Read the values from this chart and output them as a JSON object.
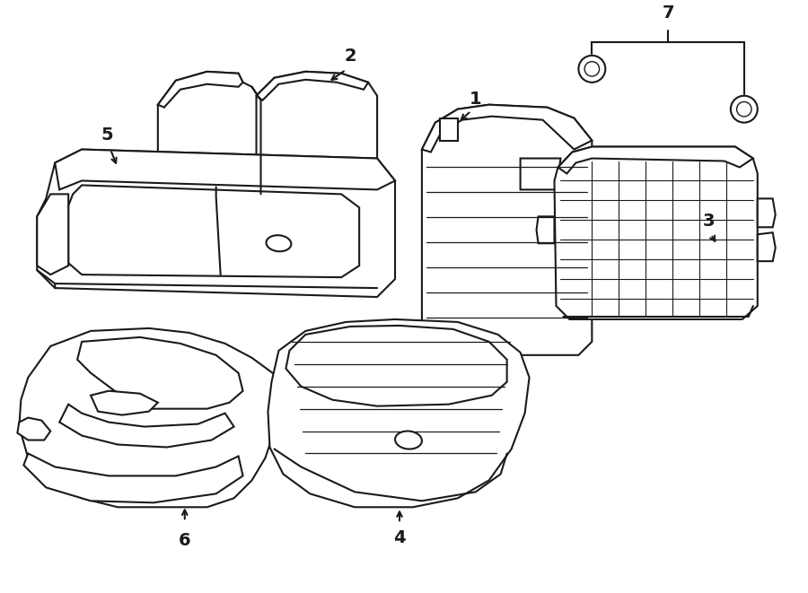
{
  "background_color": "#ffffff",
  "line_color": "#1a1a1a",
  "fig_width": 9.0,
  "fig_height": 6.61,
  "dpi": 100
}
